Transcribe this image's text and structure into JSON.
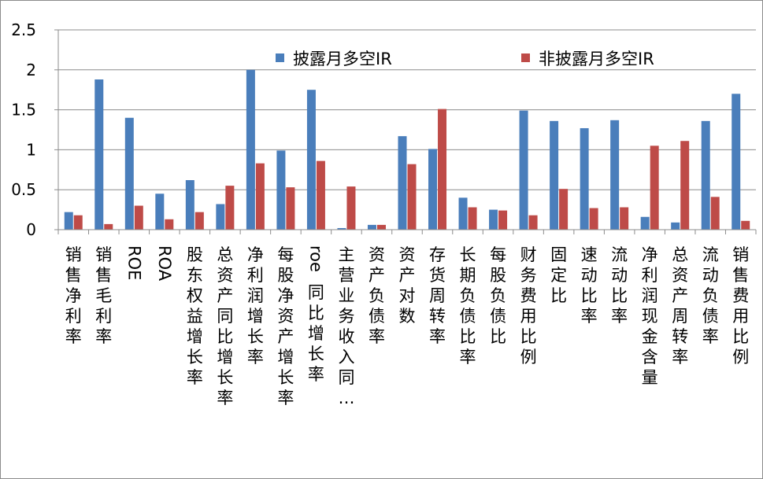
{
  "chart_data": {
    "type": "bar",
    "categories": [
      "销售净利率",
      "销售毛利率",
      "ROE",
      "ROA",
      "股东权益增长率",
      "总资产同比增长率",
      "净利润增长率",
      "每股净资产增长率",
      "roe同比增长率",
      "主营业务收入同…",
      "资产负债率",
      "资产对数",
      "存货周转率",
      "长期负债比率",
      "每股负债比",
      "财务费用比例",
      "固定比",
      "速动比率",
      "流动比率",
      "净利润现金含量",
      "总资产周转率",
      "流动负债率",
      "销售费用比例"
    ],
    "series": [
      {
        "name": "披露月多空IR",
        "color": "#4a7ebb",
        "values": [
          0.22,
          1.88,
          1.4,
          0.45,
          0.62,
          0.32,
          2.0,
          0.99,
          1.75,
          0.02,
          0.06,
          1.17,
          1.01,
          0.4,
          0.25,
          1.49,
          1.36,
          1.27,
          1.37,
          0.16,
          0.09,
          1.36,
          1.7
        ]
      },
      {
        "name": "非披露月多空IR",
        "color": "#be4b48",
        "values": [
          0.18,
          0.07,
          0.3,
          0.13,
          0.22,
          0.55,
          0.83,
          0.53,
          0.86,
          0.54,
          0.06,
          0.82,
          1.51,
          0.28,
          0.24,
          0.18,
          0.51,
          0.27,
          0.28,
          1.05,
          1.11,
          0.41,
          0.11
        ]
      }
    ],
    "ylim": [
      0,
      2.5
    ],
    "yticks": [
      "0",
      "0.5",
      "1",
      "1.5",
      "2",
      "2.5"
    ],
    "gridlines": true,
    "legend_position": "top",
    "title": "",
    "xlabel": "",
    "ylabel": ""
  }
}
